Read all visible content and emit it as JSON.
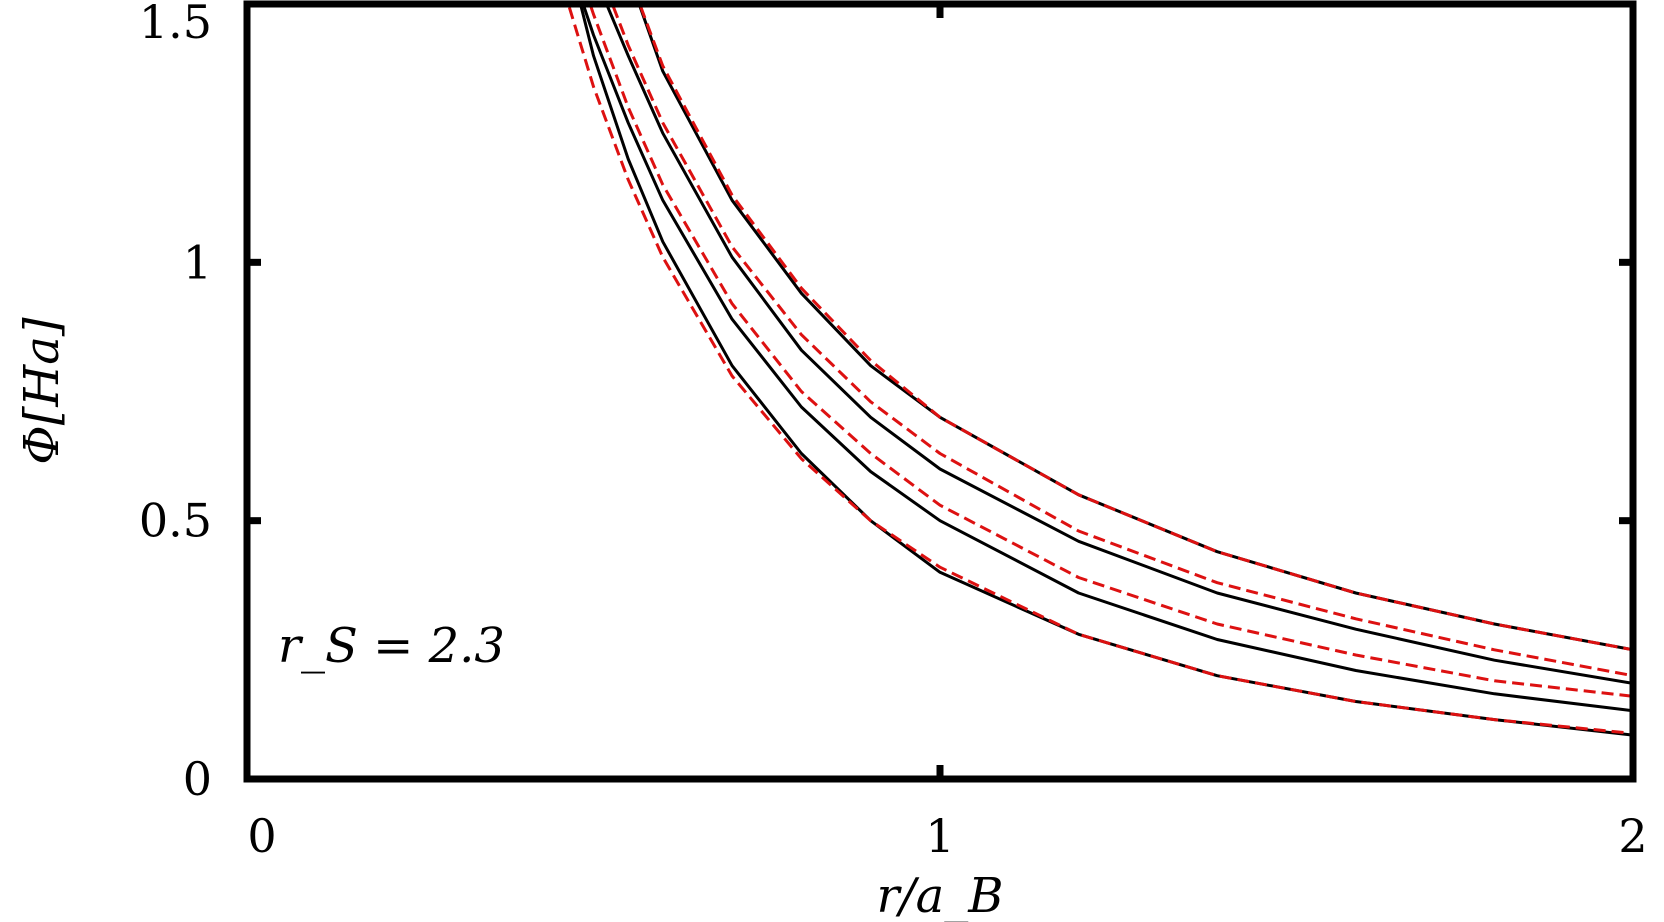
{
  "chart_data": {
    "type": "line",
    "title": "",
    "xlabel": "r/a_B",
    "ylabel": "Φ[Ha]",
    "xlim": [
      0,
      2
    ],
    "ylim": [
      0,
      1.5
    ],
    "xticks": [
      0,
      1,
      2
    ],
    "xtick_labels": [
      "0",
      "1",
      "2"
    ],
    "yticks": [
      0,
      0.5,
      1,
      1.5
    ],
    "ytick_labels": [
      "0",
      "0.5",
      "1",
      "1.5"
    ],
    "grid": false,
    "legend": "none",
    "annotation": "r_S = 2.3",
    "series": [
      {
        "style": "solid",
        "color": "#000000",
        "x": [
          0.47,
          0.5,
          0.55,
          0.6,
          0.7,
          0.8,
          0.9,
          1.0,
          1.2,
          1.4,
          1.6,
          1.8,
          2.0
        ],
        "y": [
          1.56,
          1.44,
          1.27,
          1.12,
          0.89,
          0.72,
          0.595,
          0.5,
          0.36,
          0.27,
          0.21,
          0.165,
          0.132
        ]
      },
      {
        "style": "solid",
        "color": "#000000",
        "x": [
          0.5,
          0.55,
          0.6,
          0.7,
          0.8,
          0.9,
          1.0,
          1.2,
          1.4,
          1.6,
          1.8,
          2.0
        ],
        "y": [
          1.56,
          1.4,
          1.25,
          1.01,
          0.83,
          0.7,
          0.6,
          0.46,
          0.36,
          0.29,
          0.23,
          0.185
        ]
      },
      {
        "style": "solid",
        "color": "#000000",
        "x": [
          0.47,
          0.5,
          0.55,
          0.6,
          0.7,
          0.8,
          0.9,
          1.0,
          1.2,
          1.4,
          1.6,
          1.8,
          2.0
        ],
        "y": [
          1.56,
          1.4,
          1.2,
          1.04,
          0.8,
          0.63,
          0.5,
          0.4,
          0.28,
          0.2,
          0.15,
          0.115,
          0.085
        ]
      },
      {
        "style": "solid",
        "color": "#000000",
        "x": [
          0.55,
          0.6,
          0.7,
          0.8,
          0.9,
          1.0,
          1.2,
          1.4,
          1.6,
          1.8,
          2.0
        ],
        "y": [
          1.56,
          1.37,
          1.12,
          0.94,
          0.8,
          0.7,
          0.55,
          0.44,
          0.36,
          0.3,
          0.25
        ]
      },
      {
        "style": "dashed",
        "color": "#dd1111",
        "x": [
          0.45,
          0.5,
          0.55,
          0.6,
          0.7,
          0.8,
          0.9,
          1.0,
          1.2,
          1.4,
          1.6,
          1.8,
          2.0
        ],
        "y": [
          1.56,
          1.34,
          1.16,
          1.01,
          0.78,
          0.62,
          0.5,
          0.41,
          0.28,
          0.2,
          0.15,
          0.115,
          0.088
        ]
      },
      {
        "style": "dashed",
        "color": "#dd1111",
        "x": [
          0.48,
          0.5,
          0.55,
          0.6,
          0.7,
          0.8,
          0.9,
          1.0,
          1.2,
          1.4,
          1.6,
          1.8,
          2.0
        ],
        "y": [
          1.56,
          1.48,
          1.3,
          1.15,
          0.92,
          0.75,
          0.63,
          0.53,
          0.39,
          0.3,
          0.24,
          0.19,
          0.16
        ]
      },
      {
        "style": "dashed",
        "color": "#dd1111",
        "x": [
          0.51,
          0.55,
          0.6,
          0.7,
          0.8,
          0.9,
          1.0,
          1.2,
          1.4,
          1.6,
          1.8,
          2.0
        ],
        "y": [
          1.56,
          1.42,
          1.27,
          1.03,
          0.86,
          0.73,
          0.63,
          0.48,
          0.38,
          0.31,
          0.25,
          0.2
        ]
      },
      {
        "style": "dashed",
        "color": "#dd1111",
        "x": [
          0.55,
          0.6,
          0.7,
          0.8,
          0.9,
          1.0,
          1.2,
          1.4,
          1.6,
          1.8,
          2.0
        ],
        "y": [
          1.56,
          1.38,
          1.13,
          0.95,
          0.81,
          0.7,
          0.55,
          0.44,
          0.36,
          0.3,
          0.25
        ]
      }
    ]
  }
}
